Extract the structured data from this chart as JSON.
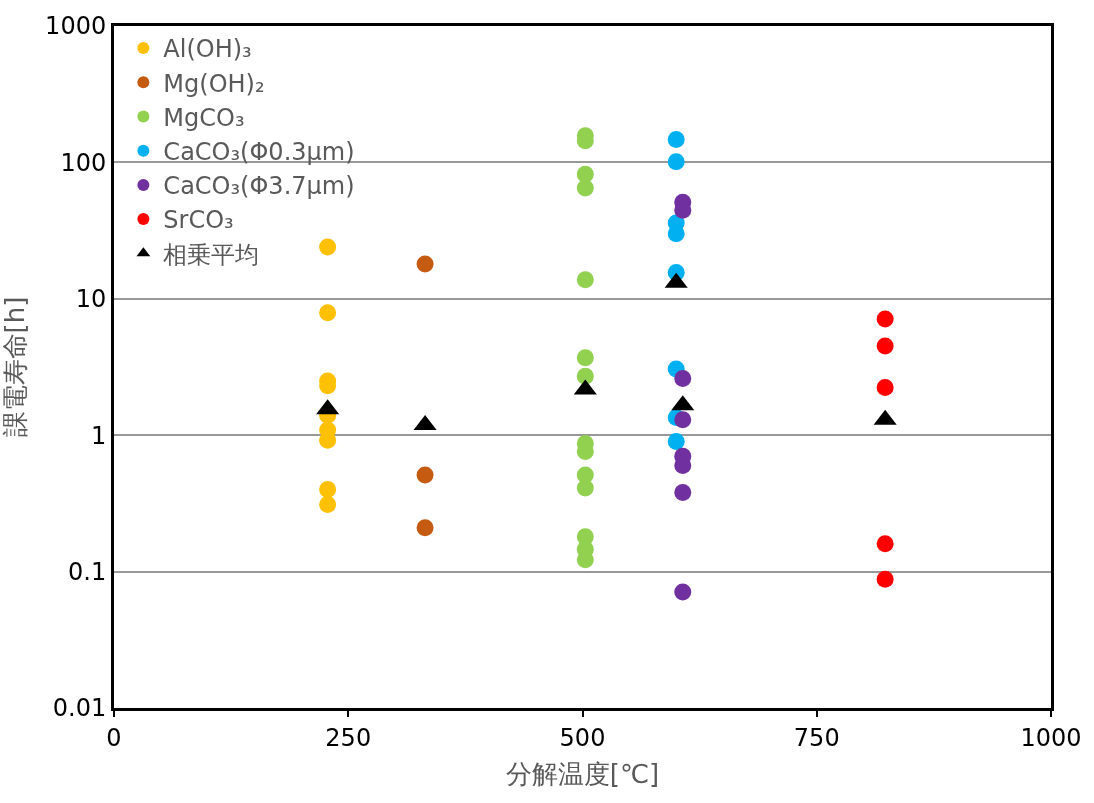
{
  "chart_data": {
    "type": "scatter",
    "xlabel": "分解温度[℃]",
    "ylabel": "課電寿命[h]",
    "log": "y",
    "grid": "y",
    "legend": "top left",
    "marker": "circle",
    "xlim": [
      0,
      1000
    ],
    "xticks": [
      0,
      250,
      500,
      750,
      1000
    ],
    "ylim": [
      0.01,
      1000
    ],
    "yticks": [
      0.01,
      0.1,
      1,
      10,
      100,
      1000
    ],
    "series": [
      {
        "name": "Al(OH)₃",
        "color": "#ffc000",
        "x": [
          228,
          228,
          228,
          228,
          228,
          228,
          228,
          228,
          228
        ],
        "values": [
          24,
          7.9,
          2.5,
          2.3,
          1.4,
          1.09,
          0.92,
          0.4,
          0.31
        ]
      },
      {
        "name": "Mg(OH)₂",
        "color": "#c55a11",
        "x": [
          332,
          332,
          332
        ],
        "values": [
          18,
          0.51,
          0.21
        ]
      },
      {
        "name": "MgCO₃",
        "color": "#92d050",
        "x": [
          503,
          503,
          503,
          503,
          503,
          503,
          503,
          503,
          503,
          503,
          503,
          503,
          503,
          503
        ],
        "values": [
          157,
          144,
          82,
          65,
          13.8,
          3.7,
          2.7,
          0.87,
          0.76,
          0.51,
          0.41,
          0.18,
          0.146,
          0.122
        ]
      },
      {
        "name": "CaCO₃(Φ0.3μm)",
        "color": "#00b0f0",
        "x": [
          600,
          600,
          600,
          600,
          600,
          600,
          600,
          600
        ],
        "values": [
          147,
          101,
          36,
          30,
          15.6,
          3.06,
          1.35,
          0.9
        ]
      },
      {
        "name": "CaCO₃(Φ3.7μm)",
        "color": "#7030a0",
        "x": [
          607,
          607,
          607,
          607,
          607,
          607,
          607,
          607
        ],
        "values": [
          51,
          44.6,
          2.6,
          1.3,
          0.7,
          0.6,
          0.38,
          0.071
        ]
      },
      {
        "name": "SrCO₃",
        "color": "#ff0000",
        "x": [
          823,
          823,
          823,
          823,
          823
        ],
        "values": [
          7.1,
          4.5,
          2.24,
          0.16,
          0.088
        ]
      },
      {
        "name": "相乗平均",
        "color": "#000000",
        "marker": "triangle",
        "x": [
          228,
          332,
          503,
          600,
          607,
          823
        ],
        "values": [
          1.55,
          1.19,
          2.16,
          13.1,
          1.66,
          1.3
        ]
      }
    ]
  }
}
